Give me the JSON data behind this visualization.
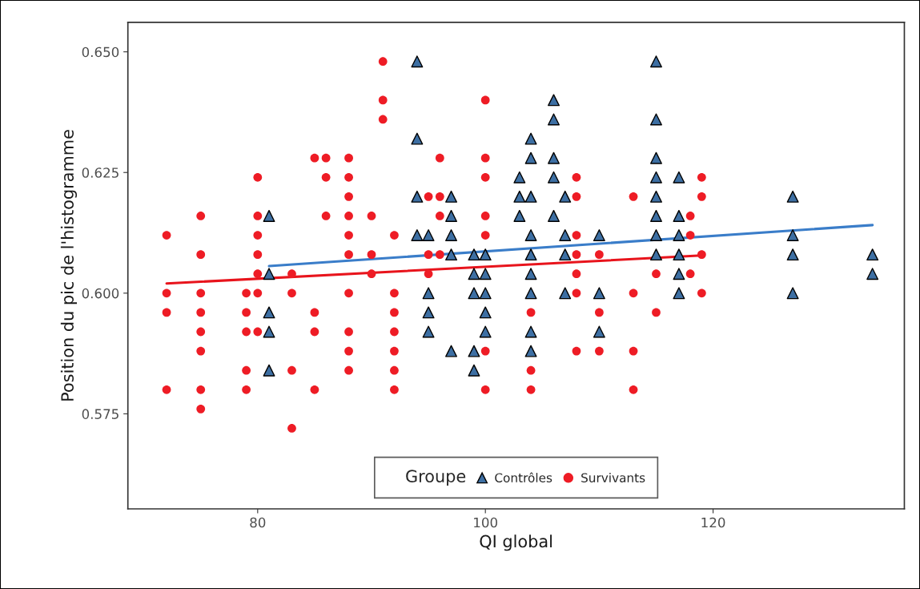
{
  "chart_data": {
    "type": "scatter",
    "xlabel": "QI global",
    "ylabel": "Position du pic de l'histogramme",
    "legend_title": "Groupe",
    "legend": "bottom",
    "grid": false,
    "xlim": [
      68.6,
      136.8
    ],
    "xticks": [
      80,
      100,
      120
    ],
    "ylim": [
      0.5553,
      0.6561
    ],
    "yticks": [
      0.575,
      {
        "value": 0.6,
        "label": "0.600"
      },
      0.625,
      {
        "value": 0.65,
        "label": "0.650"
      }
    ],
    "series": [
      {
        "name": "Contrôles",
        "marker": "triangle",
        "color": "#3d6fa3",
        "x": [
          81,
          81,
          81,
          81,
          81,
          94,
          94,
          94,
          94,
          95,
          95,
          95,
          95,
          97,
          97,
          97,
          97,
          97,
          99,
          99,
          99,
          99,
          99,
          100,
          100,
          100,
          100,
          100,
          103,
          103,
          103,
          104,
          104,
          104,
          104,
          104,
          104,
          104,
          104,
          104,
          106,
          106,
          106,
          106,
          106,
          107,
          107,
          107,
          107,
          110,
          110,
          110,
          115,
          115,
          115,
          115,
          115,
          115,
          115,
          115,
          117,
          117,
          117,
          117,
          117,
          117,
          127,
          127,
          127,
          127,
          134,
          134
        ],
        "values": [
          0.616,
          0.604,
          0.596,
          0.592,
          0.584,
          0.648,
          0.632,
          0.62,
          0.612,
          0.612,
          0.6,
          0.596,
          0.592,
          0.62,
          0.616,
          0.612,
          0.608,
          0.588,
          0.608,
          0.604,
          0.6,
          0.588,
          0.584,
          0.608,
          0.604,
          0.6,
          0.596,
          0.592,
          0.624,
          0.62,
          0.616,
          0.632,
          0.628,
          0.62,
          0.612,
          0.608,
          0.604,
          0.6,
          0.592,
          0.588,
          0.64,
          0.636,
          0.628,
          0.624,
          0.616,
          0.62,
          0.612,
          0.608,
          0.6,
          0.612,
          0.6,
          0.592,
          0.648,
          0.636,
          0.628,
          0.624,
          0.62,
          0.616,
          0.612,
          0.608,
          0.624,
          0.616,
          0.612,
          0.608,
          0.604,
          0.6,
          0.62,
          0.612,
          0.608,
          0.6,
          0.608,
          0.604
        ]
      },
      {
        "name": "Survivants",
        "marker": "circle",
        "color": "#ee1c25",
        "x": [
          72,
          72,
          72,
          72,
          75,
          75,
          75,
          75,
          75,
          75,
          75,
          75,
          79,
          79,
          79,
          79,
          79,
          80,
          80,
          80,
          80,
          80,
          80,
          80,
          83,
          83,
          83,
          83,
          85,
          85,
          85,
          85,
          86,
          86,
          86,
          88,
          88,
          88,
          88,
          88,
          88,
          88,
          88,
          88,
          88,
          90,
          90,
          90,
          91,
          91,
          91,
          92,
          92,
          92,
          92,
          92,
          92,
          92,
          95,
          95,
          95,
          96,
          96,
          96,
          96,
          100,
          100,
          100,
          100,
          100,
          100,
          100,
          104,
          104,
          104,
          108,
          108,
          108,
          108,
          108,
          108,
          108,
          110,
          110,
          110,
          113,
          113,
          113,
          113,
          115,
          115,
          118,
          118,
          118,
          119,
          119,
          119,
          119
        ],
        "values": [
          0.612,
          0.6,
          0.596,
          0.58,
          0.616,
          0.608,
          0.6,
          0.596,
          0.592,
          0.588,
          0.58,
          0.576,
          0.6,
          0.596,
          0.592,
          0.584,
          0.58,
          0.624,
          0.616,
          0.612,
          0.608,
          0.604,
          0.6,
          0.592,
          0.604,
          0.6,
          0.584,
          0.572,
          0.628,
          0.596,
          0.592,
          0.58,
          0.628,
          0.624,
          0.616,
          0.628,
          0.624,
          0.62,
          0.616,
          0.612,
          0.608,
          0.6,
          0.592,
          0.588,
          0.584,
          0.616,
          0.608,
          0.604,
          0.648,
          0.64,
          0.636,
          0.612,
          0.6,
          0.596,
          0.592,
          0.588,
          0.584,
          0.58,
          0.62,
          0.608,
          0.604,
          0.628,
          0.62,
          0.616,
          0.608,
          0.64,
          0.628,
          0.624,
          0.616,
          0.612,
          0.588,
          0.58,
          0.596,
          0.584,
          0.58,
          0.624,
          0.62,
          0.612,
          0.608,
          0.604,
          0.6,
          0.588,
          0.608,
          0.596,
          0.588,
          0.62,
          0.6,
          0.588,
          0.58,
          0.604,
          0.596,
          0.616,
          0.612,
          0.604,
          0.624,
          0.62,
          0.608,
          0.6
        ]
      },
      {
        "type": "line",
        "color": "#3a7dc9",
        "x": [
          81,
          134
        ],
        "values": [
          0.6056,
          0.6141
        ]
      },
      {
        "type": "line",
        "color": "#e8141c",
        "x": [
          72,
          119
        ],
        "values": [
          0.602,
          0.6078
        ]
      }
    ]
  }
}
